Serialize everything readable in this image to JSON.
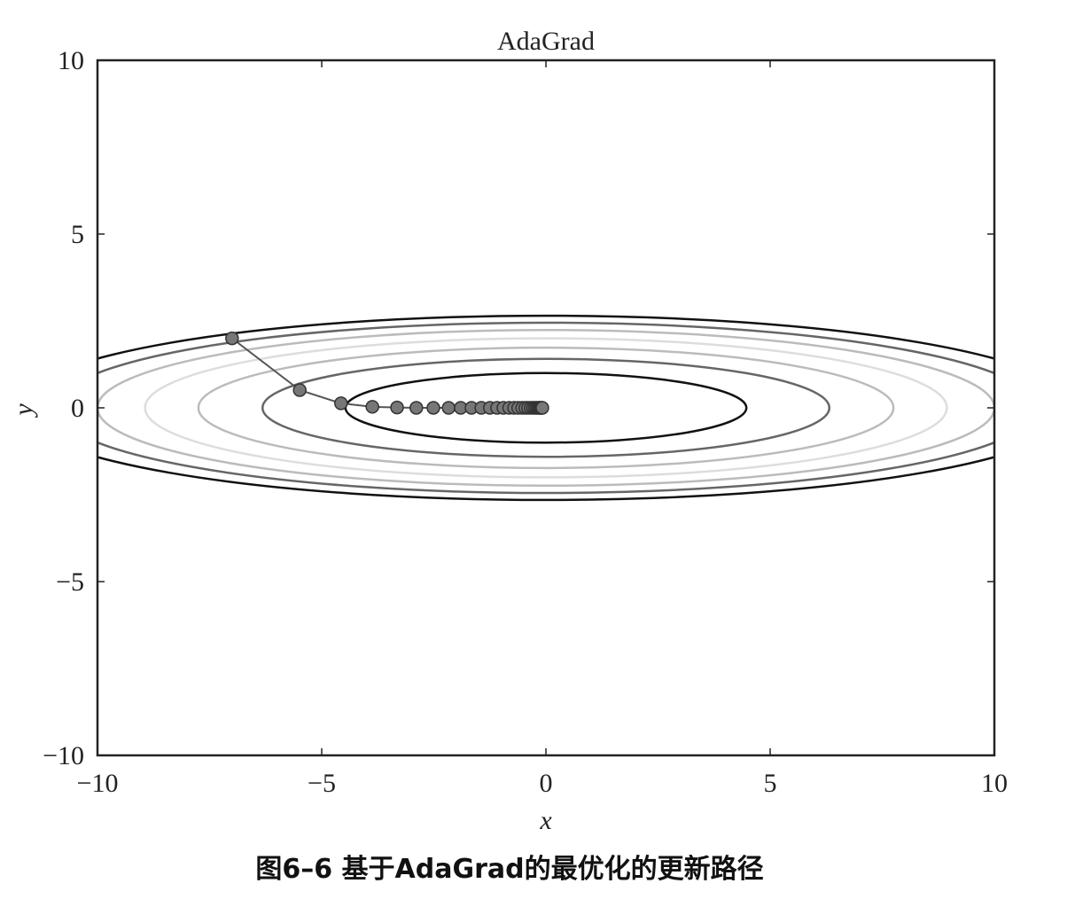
{
  "chart_data": {
    "type": "line",
    "title": "AdaGrad",
    "xlabel": "x",
    "ylabel": "y",
    "xlim": [
      -10,
      10
    ],
    "ylim": [
      -10,
      10
    ],
    "xticks": [
      {
        "value": -10,
        "label": "−10"
      },
      {
        "value": -5,
        "label": "−5"
      },
      0,
      5,
      10
    ],
    "yticks": [
      {
        "value": -10,
        "label": "−10"
      },
      {
        "value": -5,
        "label": "−5"
      },
      0,
      5,
      10
    ],
    "grid": false,
    "contours": [
      {
        "rx": 4.47,
        "ry": 1.0,
        "color": "#111111"
      },
      {
        "rx": 6.32,
        "ry": 1.41,
        "color": "#666666"
      },
      {
        "rx": 7.75,
        "ry": 1.73,
        "color": "#bbbbbb"
      },
      {
        "rx": 8.94,
        "ry": 2.0,
        "color": "#dddddd"
      },
      {
        "rx": 10.0,
        "ry": 2.24,
        "color": "#bbbbbb"
      },
      {
        "rx": 10.95,
        "ry": 2.45,
        "color": "#666666"
      },
      {
        "rx": 11.83,
        "ry": 2.65,
        "color": "#111111"
      }
    ],
    "series": [
      {
        "color": "#777777",
        "x": [
          -7,
          -5.49,
          -4.57,
          -3.87,
          -3.32,
          -2.89,
          -2.51,
          -2.17,
          -1.9,
          -1.66,
          -1.44,
          -1.25,
          -1.09,
          -0.95,
          -0.82,
          -0.71,
          -0.62,
          -0.53,
          -0.46,
          -0.4,
          -0.34,
          -0.29,
          -0.25,
          -0.21,
          -0.18,
          -0.15,
          -0.13,
          -0.11,
          -0.09,
          -0.08
        ],
        "values": [
          2,
          0.51,
          0.13,
          0.03,
          0.01,
          0,
          0,
          0,
          0,
          0,
          0,
          0,
          0,
          0,
          0,
          0,
          0,
          0,
          0,
          0,
          0,
          0,
          0,
          0,
          0,
          0,
          0,
          0,
          0,
          0
        ]
      }
    ]
  },
  "caption": "图6–6 基于AdaGrad的最优化的更新路径"
}
